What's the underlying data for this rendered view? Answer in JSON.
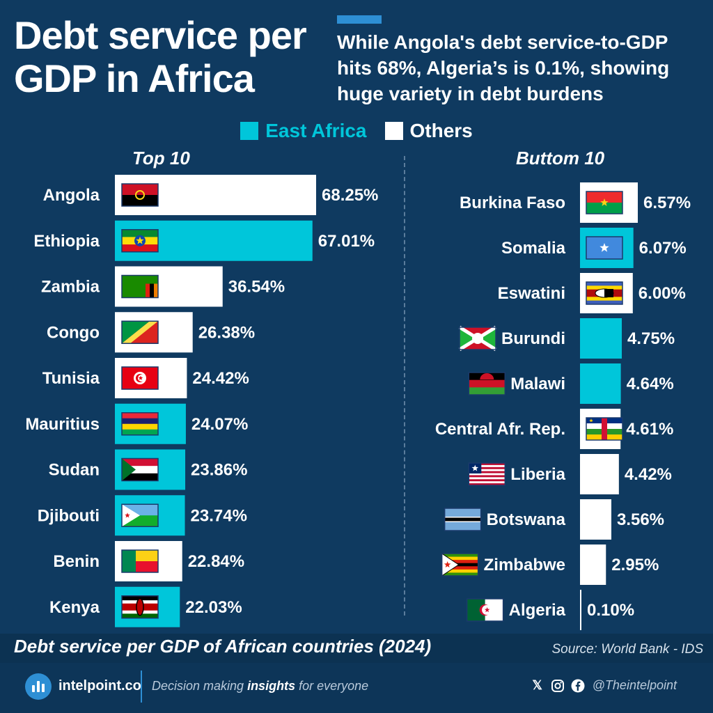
{
  "title": "Debt service per GDP in Africa",
  "subtitle": "While Angola's debt service-to-GDP hits 68%, Algeria’s is 0.1%, showing huge variety in debt burdens",
  "legend": [
    {
      "label": "East Africa",
      "color": "#00c6da"
    },
    {
      "label": "Others",
      "color": "#ffffff"
    }
  ],
  "colors": {
    "background": "#0f3a60",
    "east_africa": "#00c6da",
    "others": "#ffffff"
  },
  "chart_data": [
    {
      "type": "bar",
      "title": "Top 10",
      "categories": [
        "Angola",
        "Ethiopia",
        "Zambia",
        "Congo",
        "Tunisia",
        "Mauritius",
        "Sudan",
        "Djibouti",
        "Benin",
        "Kenya"
      ],
      "values": [
        68.25,
        67.01,
        36.54,
        26.38,
        24.42,
        24.07,
        23.86,
        23.74,
        22.84,
        22.03
      ],
      "labels": [
        "68.25%",
        "67.01%",
        "36.54%",
        "26.38%",
        "24.42%",
        "24.07%",
        "23.86%",
        "23.74%",
        "22.84%",
        "22.03%"
      ],
      "group": [
        "Others",
        "East Africa",
        "Others",
        "Others",
        "Others",
        "East Africa",
        "East Africa",
        "East Africa",
        "Others",
        "East Africa"
      ],
      "flags": [
        "angola",
        "ethiopia",
        "zambia",
        "congo",
        "tunisia",
        "mauritius",
        "sudan",
        "djibouti",
        "benin",
        "kenya"
      ]
    },
    {
      "type": "bar",
      "title": "Buttom 10",
      "categories": [
        "Burkina Faso",
        "Somalia",
        "Eswatini",
        "Burundi",
        "Malawi",
        "Central Afr. Rep.",
        "Liberia",
        "Botswana",
        "Zimbabwe",
        "Algeria"
      ],
      "values": [
        6.57,
        6.07,
        6.0,
        4.75,
        4.64,
        4.61,
        4.42,
        3.56,
        2.95,
        0.1
      ],
      "labels": [
        "6.57%",
        "6.07%",
        "6.00%",
        "4.75%",
        "4.64%",
        "4.61%",
        "4.42%",
        "3.56%",
        "2.95%",
        "0.10%"
      ],
      "group": [
        "Others",
        "East Africa",
        "Others",
        "East Africa",
        "East Africa",
        "Others",
        "Others",
        "Others",
        "Others",
        "Others"
      ],
      "flags": [
        "burkina-faso",
        "somalia",
        "eswatini",
        "burundi",
        "malawi",
        "central-african-republic",
        "liberia",
        "botswana",
        "zimbabwe",
        "algeria"
      ]
    }
  ],
  "footer": {
    "chart_title": "Debt service per GDP of African countries (2024)",
    "source": "Source: World Bank - IDS"
  },
  "brand": {
    "name": "intelpoint.co",
    "tagline_pre": "Decision making ",
    "tagline_bold": "insights",
    "tagline_post": " for everyone",
    "handle": "@Theintelpoint"
  }
}
